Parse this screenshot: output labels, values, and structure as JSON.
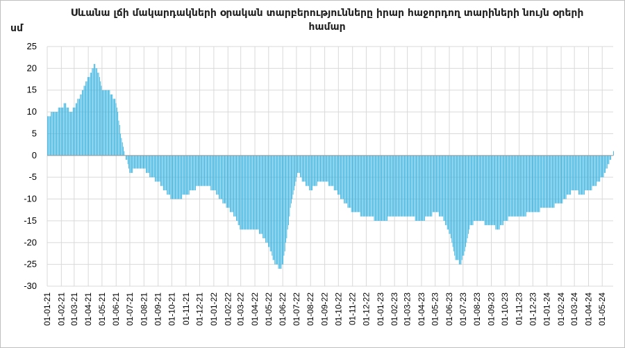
{
  "chart_data": {
    "type": "bar",
    "title": "Սևանա լճի մակարդակների օրական տարբերությունները իրար հաջորդող տարիների նույն օրերի համար",
    "ylabel": "սմ",
    "xlabel": "",
    "ylim": [
      -30,
      25
    ],
    "yticks": [
      "25",
      "20",
      "15",
      "10",
      "5",
      "0",
      "-5",
      "-10",
      "-15",
      "-20",
      "-25",
      "-30"
    ],
    "grid": true,
    "bar_color": "#3cb4e0",
    "x_tick_labels": [
      "01-01-21",
      "01-02-21",
      "01-03-21",
      "01-04-21",
      "01-05-21",
      "01-06-21",
      "01-07-21",
      "01-08-21",
      "01-09-21",
      "01-10-21",
      "01-11-21",
      "01-12-21",
      "01-01-22",
      "01-02-22",
      "01-03-22",
      "01-04-22",
      "01-05-22",
      "01-06-22",
      "01-07-22",
      "01-08-22",
      "01-09-22",
      "01-10-22",
      "01-11-22",
      "01-12-22",
      "01-01-23",
      "01-02-23",
      "01-03-23",
      "01-04-23",
      "01-05-23",
      "01-06-23",
      "01-07-23",
      "01-08-23",
      "01-09-23",
      "01-10-23",
      "01-11-23",
      "01-12-23",
      "01-01-24",
      "01-02-24",
      "01-03-24",
      "01-04-24",
      "01-05-24"
    ],
    "x_dates": [
      "2021-01-01",
      "2021-02-01",
      "2021-03-01",
      "2021-04-01",
      "2021-05-01",
      "2021-06-01",
      "2021-07-01",
      "2021-08-01",
      "2021-09-01",
      "2021-10-01",
      "2021-11-01",
      "2021-12-01",
      "2022-01-01",
      "2022-02-01",
      "2022-03-01",
      "2022-04-01",
      "2022-05-01",
      "2022-06-01",
      "2022-07-01",
      "2022-08-01",
      "2022-09-01",
      "2022-10-01",
      "2022-11-01",
      "2022-12-01",
      "2023-01-01",
      "2023-02-01",
      "2023-03-01",
      "2023-04-01",
      "2023-05-01",
      "2023-06-01",
      "2023-07-01",
      "2023-08-01",
      "2023-09-01",
      "2023-10-01",
      "2023-11-01",
      "2023-12-01",
      "2024-01-01",
      "2024-02-01",
      "2024-03-01",
      "2024-04-01",
      "2024-05-01"
    ],
    "series_points": [
      {
        "x": "2021-01-01",
        "y": 9
      },
      {
        "x": "2021-01-15",
        "y": 10
      },
      {
        "x": "2021-02-01",
        "y": 11
      },
      {
        "x": "2021-02-08",
        "y": 12
      },
      {
        "x": "2021-02-20",
        "y": 10
      },
      {
        "x": "2021-03-01",
        "y": 11
      },
      {
        "x": "2021-03-15",
        "y": 14
      },
      {
        "x": "2021-04-01",
        "y": 18
      },
      {
        "x": "2021-04-15",
        "y": 21
      },
      {
        "x": "2021-04-25",
        "y": 18
      },
      {
        "x": "2021-05-01",
        "y": 15
      },
      {
        "x": "2021-05-15",
        "y": 15
      },
      {
        "x": "2021-06-01",
        "y": 12
      },
      {
        "x": "2021-06-10",
        "y": 5
      },
      {
        "x": "2021-06-20",
        "y": 0
      },
      {
        "x": "2021-07-01",
        "y": -4
      },
      {
        "x": "2021-07-15",
        "y": -3
      },
      {
        "x": "2021-08-01",
        "y": -3
      },
      {
        "x": "2021-08-15",
        "y": -5
      },
      {
        "x": "2021-09-01",
        "y": -6
      },
      {
        "x": "2021-09-15",
        "y": -8
      },
      {
        "x": "2021-10-01",
        "y": -10
      },
      {
        "x": "2021-10-15",
        "y": -10
      },
      {
        "x": "2021-11-01",
        "y": -9
      },
      {
        "x": "2021-11-15",
        "y": -8
      },
      {
        "x": "2021-12-01",
        "y": -7
      },
      {
        "x": "2021-12-15",
        "y": -7
      },
      {
        "x": "2022-01-01",
        "y": -8
      },
      {
        "x": "2022-01-15",
        "y": -10
      },
      {
        "x": "2022-02-01",
        "y": -12
      },
      {
        "x": "2022-02-15",
        "y": -14
      },
      {
        "x": "2022-03-01",
        "y": -17
      },
      {
        "x": "2022-04-01",
        "y": -17
      },
      {
        "x": "2022-04-15",
        "y": -18
      },
      {
        "x": "2022-05-01",
        "y": -21
      },
      {
        "x": "2022-05-15",
        "y": -25
      },
      {
        "x": "2022-05-25",
        "y": -26
      },
      {
        "x": "2022-06-01",
        "y": -25
      },
      {
        "x": "2022-06-10",
        "y": -18
      },
      {
        "x": "2022-06-20",
        "y": -10
      },
      {
        "x": "2022-07-01",
        "y": -5
      },
      {
        "x": "2022-07-05",
        "y": -4
      },
      {
        "x": "2022-07-15",
        "y": -6
      },
      {
        "x": "2022-08-01",
        "y": -8
      },
      {
        "x": "2022-08-10",
        "y": -7
      },
      {
        "x": "2022-08-20",
        "y": -6
      },
      {
        "x": "2022-09-01",
        "y": -6
      },
      {
        "x": "2022-09-15",
        "y": -7
      },
      {
        "x": "2022-10-01",
        "y": -9
      },
      {
        "x": "2022-10-15",
        "y": -11
      },
      {
        "x": "2022-11-01",
        "y": -13
      },
      {
        "x": "2022-12-01",
        "y": -14
      },
      {
        "x": "2023-01-01",
        "y": -15
      },
      {
        "x": "2023-02-01",
        "y": -14
      },
      {
        "x": "2023-03-01",
        "y": -14
      },
      {
        "x": "2023-04-01",
        "y": -15
      },
      {
        "x": "2023-05-01",
        "y": -13
      },
      {
        "x": "2023-05-15",
        "y": -14
      },
      {
        "x": "2023-06-01",
        "y": -18
      },
      {
        "x": "2023-06-15",
        "y": -24
      },
      {
        "x": "2023-06-25",
        "y": -25
      },
      {
        "x": "2023-07-05",
        "y": -22
      },
      {
        "x": "2023-07-15",
        "y": -16
      },
      {
        "x": "2023-08-01",
        "y": -15
      },
      {
        "x": "2023-09-01",
        "y": -16
      },
      {
        "x": "2023-09-15",
        "y": -17
      },
      {
        "x": "2023-10-01",
        "y": -15
      },
      {
        "x": "2023-10-15",
        "y": -14
      },
      {
        "x": "2023-11-01",
        "y": -14
      },
      {
        "x": "2023-12-01",
        "y": -13
      },
      {
        "x": "2024-01-01",
        "y": -12
      },
      {
        "x": "2024-02-01",
        "y": -11
      },
      {
        "x": "2024-02-15",
        "y": -9
      },
      {
        "x": "2024-03-01",
        "y": -8
      },
      {
        "x": "2024-03-15",
        "y": -9
      },
      {
        "x": "2024-04-01",
        "y": -8
      },
      {
        "x": "2024-04-15",
        "y": -7
      },
      {
        "x": "2024-05-01",
        "y": -5
      },
      {
        "x": "2024-05-15",
        "y": -2
      },
      {
        "x": "2024-05-25",
        "y": 1
      }
    ]
  }
}
